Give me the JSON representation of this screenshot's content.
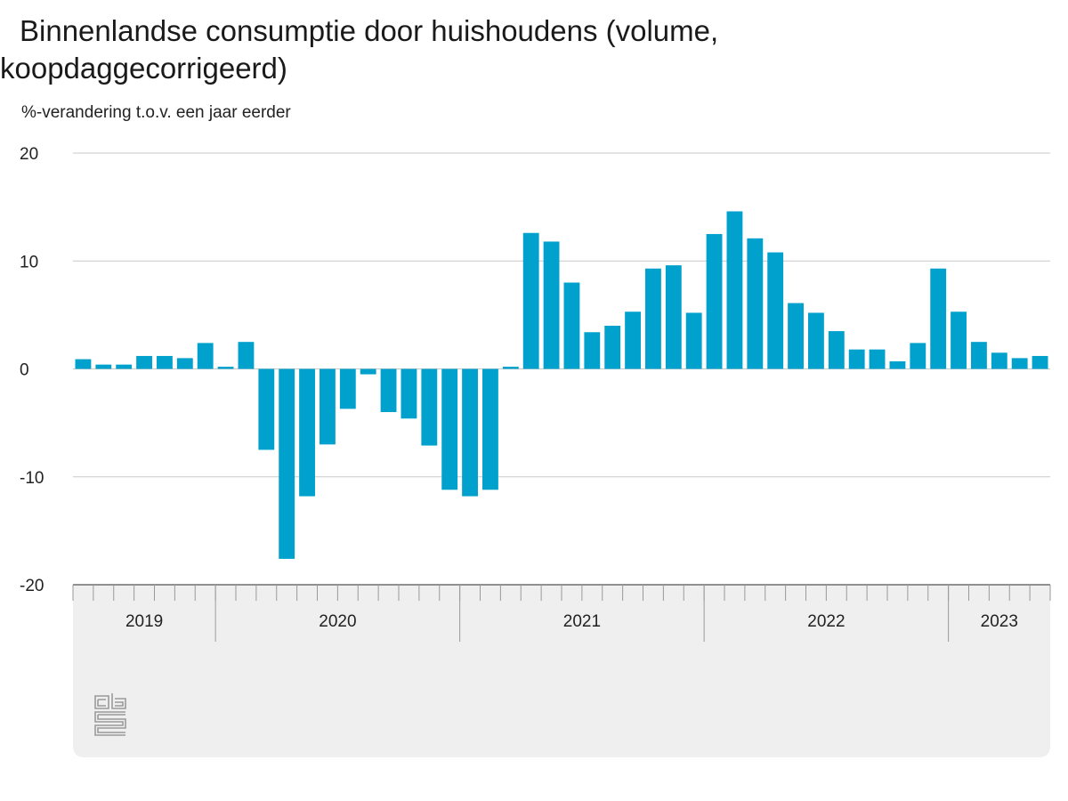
{
  "chart_data": {
    "type": "bar",
    "title": "Binnenlandse consumptie door huishoudens (volume, koopdaggecorrigeerd)",
    "ylabel": "%-verandering t.o.v. een jaar eerder",
    "ylim": [
      -20,
      20
    ],
    "yticks": [
      20,
      10,
      0,
      -10,
      -20
    ],
    "grid": true,
    "color": "#00a1cd",
    "background_color": "#efefef",
    "year_labels": [
      "2019",
      "2020",
      "2021",
      "2022",
      "2023"
    ],
    "year_month_counts": [
      7,
      12,
      12,
      12,
      5
    ],
    "categories": [
      "2019-06",
      "2019-07",
      "2019-08",
      "2019-09",
      "2019-10",
      "2019-11",
      "2019-12",
      "2020-01",
      "2020-02",
      "2020-03",
      "2020-04",
      "2020-05",
      "2020-06",
      "2020-07",
      "2020-08",
      "2020-09",
      "2020-10",
      "2020-11",
      "2020-12",
      "2021-01",
      "2021-02",
      "2021-03",
      "2021-04",
      "2021-05",
      "2021-06",
      "2021-07",
      "2021-08",
      "2021-09",
      "2021-10",
      "2021-11",
      "2021-12",
      "2022-01",
      "2022-02",
      "2022-03",
      "2022-04",
      "2022-05",
      "2022-06",
      "2022-07",
      "2022-08",
      "2022-09",
      "2022-10",
      "2022-11",
      "2022-12",
      "2023-01",
      "2023-02",
      "2023-03",
      "2023-04",
      "2023-05"
    ],
    "values": [
      0.9,
      0.4,
      0.4,
      1.2,
      1.2,
      1.0,
      2.4,
      0.2,
      2.5,
      -7.5,
      -17.6,
      -11.8,
      -7.0,
      -3.7,
      -0.5,
      -4.0,
      -4.6,
      -7.1,
      -11.2,
      -11.8,
      -11.2,
      0.2,
      12.6,
      11.8,
      8.0,
      3.4,
      4.0,
      5.3,
      9.3,
      9.6,
      5.2,
      12.5,
      14.6,
      12.1,
      10.8,
      6.1,
      5.2,
      3.5,
      1.8,
      1.8,
      0.7,
      2.4,
      9.3,
      5.3,
      2.5,
      1.5,
      1.0,
      1.2
    ]
  },
  "logo": {
    "name": "cbs"
  }
}
